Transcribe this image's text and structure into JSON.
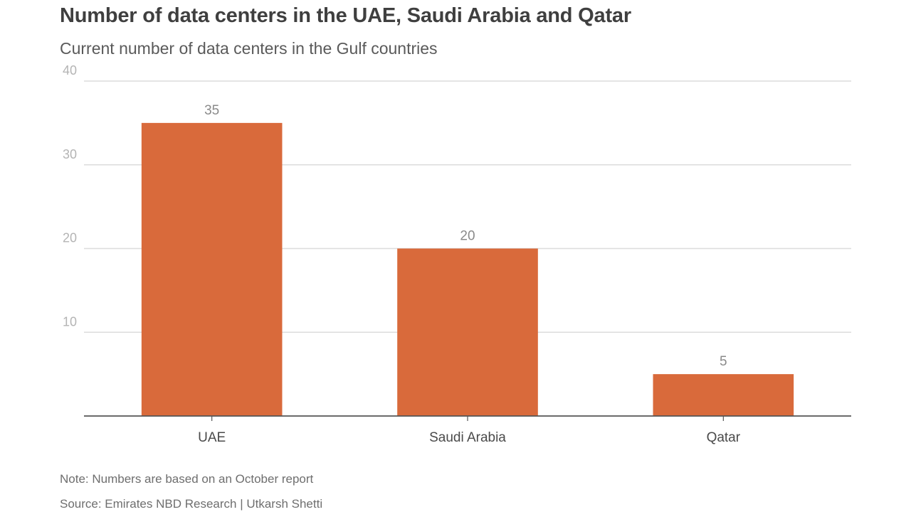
{
  "chart_data": {
    "type": "bar",
    "title": "Number of data centers in the UAE, Saudi Arabia and Qatar",
    "subtitle": "Current number of data centers in the Gulf countries",
    "categories": [
      "UAE",
      "Saudi Arabia",
      "Qatar"
    ],
    "values": [
      35,
      20,
      5
    ],
    "value_labels": [
      "35",
      "20",
      "5"
    ],
    "yticks": [
      10,
      20,
      30,
      40
    ],
    "ytick_labels": [
      "10",
      "20",
      "30",
      "40"
    ],
    "ylim": [
      0,
      40
    ],
    "xlabel": "",
    "ylabel": "",
    "grid": true,
    "bar_color": "#d96a3b"
  },
  "footer": {
    "note": "Note: Numbers are based on an October report",
    "source": "Source: Emirates NBD Research | Utkarsh Shetti"
  }
}
